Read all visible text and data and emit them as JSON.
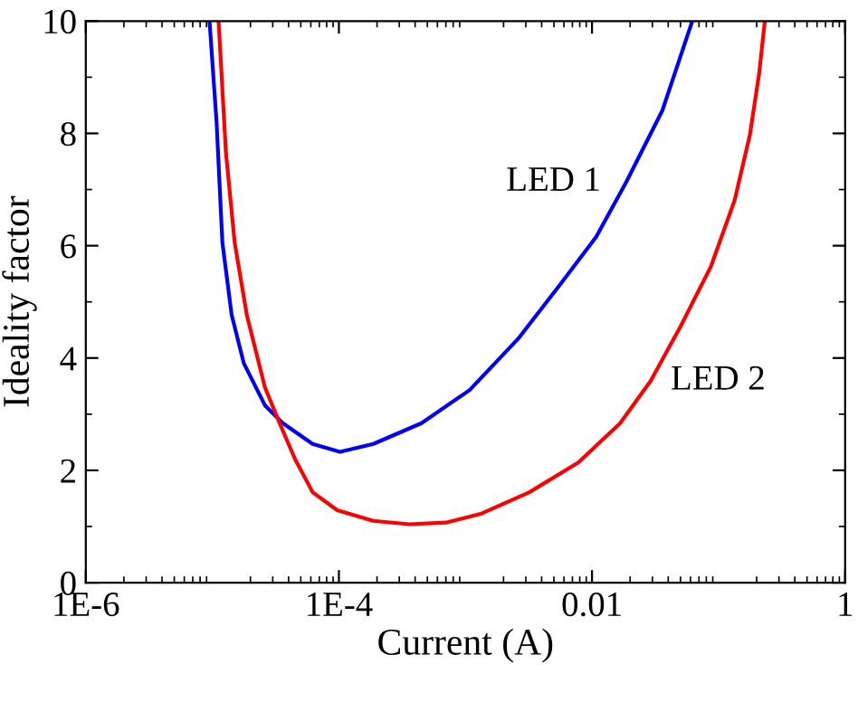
{
  "chart_data": {
    "type": "line",
    "xlabel": "Current (A)",
    "ylabel": "Ideality factor",
    "log": "x",
    "xlim": [
      1e-06,
      1
    ],
    "xticks": [
      {
        "value": 1e-06,
        "label": "1E-6"
      },
      {
        "value": 0.0001,
        "label": "1E-4"
      },
      0.01,
      1
    ],
    "ylim": [
      0,
      10
    ],
    "yticks": [
      0,
      2,
      4,
      6,
      8,
      10
    ],
    "grid": false,
    "legend": false,
    "marker": "none",
    "line_style": "solid",
    "series": [
      {
        "name": "LED 1",
        "color": "#0000ff",
        "x": [
          9.5e-06,
          1.08e-05,
          1.2e-05,
          1.42e-05,
          1.77e-05,
          2.6e-05,
          3.6e-05,
          6.2e-05,
          0.000102,
          0.000187,
          0.00045,
          0.00108,
          0.0026,
          0.0056,
          0.0108,
          0.0186,
          0.036,
          0.062
        ],
        "values": [
          10,
          8.2,
          6.06,
          4.77,
          3.91,
          3.16,
          2.84,
          2.47,
          2.33,
          2.47,
          2.84,
          3.43,
          4.34,
          5.31,
          6.16,
          7.13,
          8.41,
          10
        ]
      },
      {
        "name": "LED 2",
        "color": "#ff0000",
        "x": [
          1.12e-05,
          1.28e-05,
          1.5e-05,
          1.87e-05,
          2.6e-05,
          3.4e-05,
          4.5e-05,
          6.2e-05,
          9.7e-05,
          0.000187,
          0.00036,
          0.0007,
          0.00134,
          0.0032,
          0.0078,
          0.0167,
          0.029,
          0.05,
          0.087,
          0.134,
          0.177,
          0.209,
          0.232
        ],
        "values": [
          10,
          7.66,
          6.06,
          4.77,
          3.48,
          2.84,
          2.2,
          1.61,
          1.29,
          1.1,
          1.04,
          1.07,
          1.23,
          1.61,
          2.14,
          2.84,
          3.59,
          4.56,
          5.63,
          6.81,
          7.98,
          9.06,
          10
        ]
      }
    ]
  }
}
